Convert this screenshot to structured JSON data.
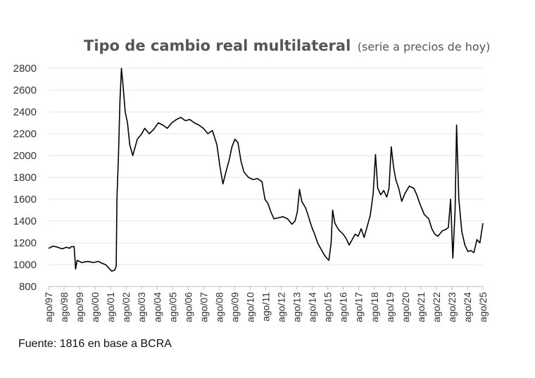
{
  "chart_data": {
    "type": "line",
    "title": "Tipo de cambio real multilateral",
    "subtitle": "(serie a precios de hoy)",
    "xlabel": "",
    "ylabel": "",
    "ylim": [
      800,
      2800
    ],
    "yticks": [
      800,
      1000,
      1200,
      1400,
      1600,
      1800,
      2000,
      2200,
      2400,
      2600,
      2800
    ],
    "grid": true,
    "categories": [
      "ago/97",
      "ago/98",
      "ago/99",
      "ago/00",
      "ago/01",
      "ago/02",
      "ago/03",
      "ago/04",
      "ago/05",
      "ago/06",
      "ago/07",
      "ago/08",
      "ago/09",
      "ago/10",
      "ago/11",
      "ago/12",
      "ago/13",
      "ago/14",
      "ago/15",
      "ago/16",
      "ago/17",
      "ago/18",
      "ago/19",
      "ago/20",
      "ago/21",
      "ago/22",
      "ago/23",
      "ago/24",
      "ago/25"
    ],
    "series": [
      {
        "name": "Tipo de cambio real multilateral",
        "color": "#000000",
        "points": [
          [
            1997.6,
            1150
          ],
          [
            1997.9,
            1170
          ],
          [
            1998.2,
            1160
          ],
          [
            1998.5,
            1145
          ],
          [
            1998.8,
            1160
          ],
          [
            1999.0,
            1150
          ],
          [
            1999.1,
            1165
          ],
          [
            1999.3,
            1165
          ],
          [
            1999.4,
            960
          ],
          [
            1999.5,
            1040
          ],
          [
            1999.8,
            1020
          ],
          [
            2000.2,
            1030
          ],
          [
            2000.6,
            1020
          ],
          [
            2000.9,
            1030
          ],
          [
            2001.2,
            1010
          ],
          [
            2001.4,
            1000
          ],
          [
            2001.6,
            970
          ],
          [
            2001.8,
            940
          ],
          [
            2002.0,
            950
          ],
          [
            2002.1,
            990
          ],
          [
            2002.15,
            1600
          ],
          [
            2002.25,
            2000
          ],
          [
            2002.35,
            2500
          ],
          [
            2002.45,
            2800
          ],
          [
            2002.55,
            2650
          ],
          [
            2002.7,
            2400
          ],
          [
            2002.85,
            2300
          ],
          [
            2003.0,
            2100
          ],
          [
            2003.2,
            2000
          ],
          [
            2003.5,
            2150
          ],
          [
            2003.8,
            2200
          ],
          [
            2004.0,
            2250
          ],
          [
            2004.3,
            2200
          ],
          [
            2004.6,
            2240
          ],
          [
            2004.9,
            2300
          ],
          [
            2005.2,
            2280
          ],
          [
            2005.5,
            2250
          ],
          [
            2005.8,
            2300
          ],
          [
            2006.1,
            2330
          ],
          [
            2006.4,
            2350
          ],
          [
            2006.7,
            2320
          ],
          [
            2007.0,
            2330
          ],
          [
            2007.3,
            2300
          ],
          [
            2007.6,
            2280
          ],
          [
            2007.9,
            2250
          ],
          [
            2008.2,
            2200
          ],
          [
            2008.5,
            2230
          ],
          [
            2008.8,
            2100
          ],
          [
            2009.0,
            1900
          ],
          [
            2009.2,
            1740
          ],
          [
            2009.4,
            1850
          ],
          [
            2009.6,
            1950
          ],
          [
            2009.8,
            2080
          ],
          [
            2010.0,
            2150
          ],
          [
            2010.2,
            2120
          ],
          [
            2010.4,
            1950
          ],
          [
            2010.6,
            1850
          ],
          [
            2010.9,
            1800
          ],
          [
            2011.2,
            1780
          ],
          [
            2011.5,
            1790
          ],
          [
            2011.8,
            1760
          ],
          [
            2012.0,
            1600
          ],
          [
            2012.2,
            1560
          ],
          [
            2012.4,
            1480
          ],
          [
            2012.6,
            1420
          ],
          [
            2012.9,
            1430
          ],
          [
            2013.2,
            1440
          ],
          [
            2013.5,
            1420
          ],
          [
            2013.8,
            1370
          ],
          [
            2014.0,
            1400
          ],
          [
            2014.15,
            1480
          ],
          [
            2014.3,
            1690
          ],
          [
            2014.45,
            1580
          ],
          [
            2014.7,
            1520
          ],
          [
            2014.9,
            1440
          ],
          [
            2015.1,
            1350
          ],
          [
            2015.3,
            1280
          ],
          [
            2015.5,
            1200
          ],
          [
            2015.7,
            1150
          ],
          [
            2015.9,
            1100
          ],
          [
            2016.1,
            1060
          ],
          [
            2016.25,
            1040
          ],
          [
            2016.4,
            1200
          ],
          [
            2016.5,
            1500
          ],
          [
            2016.65,
            1380
          ],
          [
            2016.9,
            1320
          ],
          [
            2017.2,
            1280
          ],
          [
            2017.4,
            1240
          ],
          [
            2017.6,
            1180
          ],
          [
            2017.8,
            1230
          ],
          [
            2018.0,
            1280
          ],
          [
            2018.2,
            1260
          ],
          [
            2018.4,
            1330
          ],
          [
            2018.6,
            1250
          ],
          [
            2018.8,
            1350
          ],
          [
            2019.0,
            1450
          ],
          [
            2019.2,
            1650
          ],
          [
            2019.35,
            2010
          ],
          [
            2019.5,
            1700
          ],
          [
            2019.7,
            1640
          ],
          [
            2019.9,
            1680
          ],
          [
            2020.1,
            1620
          ],
          [
            2020.25,
            1700
          ],
          [
            2020.4,
            2080
          ],
          [
            2020.55,
            1900
          ],
          [
            2020.7,
            1780
          ],
          [
            2020.9,
            1700
          ],
          [
            2021.1,
            1580
          ],
          [
            2021.3,
            1650
          ],
          [
            2021.6,
            1720
          ],
          [
            2021.9,
            1700
          ],
          [
            2022.1,
            1640
          ],
          [
            2022.3,
            1560
          ],
          [
            2022.6,
            1460
          ],
          [
            2022.9,
            1420
          ],
          [
            2023.1,
            1330
          ],
          [
            2023.3,
            1280
          ],
          [
            2023.5,
            1260
          ],
          [
            2023.8,
            1310
          ],
          [
            2024.0,
            1320
          ],
          [
            2024.2,
            1340
          ],
          [
            2024.35,
            1600
          ],
          [
            2024.5,
            1060
          ],
          [
            2024.65,
            1500
          ],
          [
            2024.75,
            2280
          ],
          [
            2024.9,
            1600
          ],
          [
            2025.1,
            1300
          ],
          [
            2025.3,
            1180
          ],
          [
            2025.5,
            1120
          ],
          [
            2025.7,
            1130
          ],
          [
            2025.9,
            1110
          ],
          [
            2026.1,
            1230
          ],
          [
            2026.3,
            1200
          ],
          [
            2026.5,
            1380
          ]
        ]
      }
    ]
  },
  "source": "Fuente: 1816 en base a BCRA"
}
